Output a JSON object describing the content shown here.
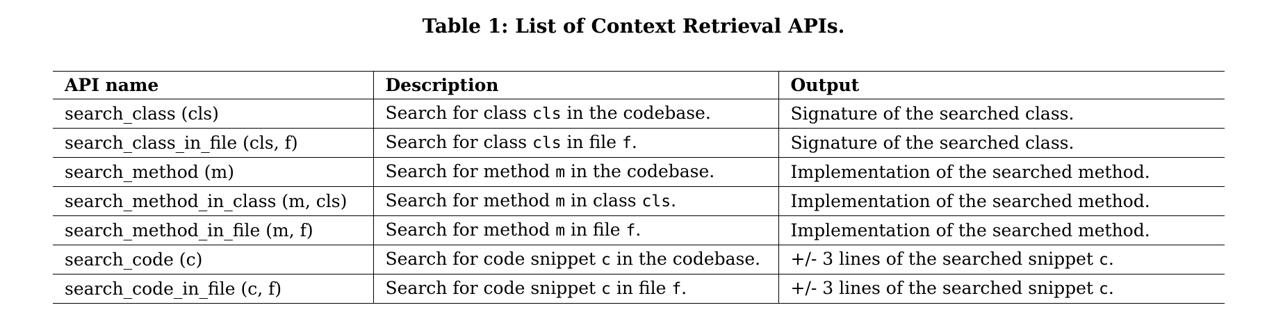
{
  "caption": "Table 1: List of Context Retrieval APIs.",
  "table": {
    "headers": [
      "API name",
      "Description",
      "Output"
    ],
    "rows": [
      {
        "api": "search_class (cls)",
        "description": [
          {
            "text": "Search for class ",
            "code": false
          },
          {
            "text": "cls",
            "code": true
          },
          {
            "text": " in the codebase.",
            "code": false
          }
        ],
        "output": [
          {
            "text": "Signature of the searched class.",
            "code": false
          }
        ]
      },
      {
        "api": "search_class_in_file (cls, f)",
        "description": [
          {
            "text": "Search for class ",
            "code": false
          },
          {
            "text": "cls",
            "code": true
          },
          {
            "text": " in file ",
            "code": false
          },
          {
            "text": "f",
            "code": true
          },
          {
            "text": ".",
            "code": false
          }
        ],
        "output": [
          {
            "text": "Signature of the searched class.",
            "code": false
          }
        ]
      },
      {
        "api": "search_method (m)",
        "description": [
          {
            "text": "Search for method ",
            "code": false
          },
          {
            "text": "m",
            "code": true
          },
          {
            "text": " in the codebase.",
            "code": false
          }
        ],
        "output": [
          {
            "text": "Implementation of the searched method.",
            "code": false
          }
        ]
      },
      {
        "api": "search_method_in_class (m, cls)",
        "description": [
          {
            "text": "Search for method ",
            "code": false
          },
          {
            "text": "m",
            "code": true
          },
          {
            "text": " in class ",
            "code": false
          },
          {
            "text": "cls",
            "code": true
          },
          {
            "text": ".",
            "code": false
          }
        ],
        "output": [
          {
            "text": "Implementation of the searched method.",
            "code": false
          }
        ]
      },
      {
        "api": "search_method_in_file (m, f)",
        "description": [
          {
            "text": "Search for method ",
            "code": false
          },
          {
            "text": "m",
            "code": true
          },
          {
            "text": " in file ",
            "code": false
          },
          {
            "text": "f",
            "code": true
          },
          {
            "text": ".",
            "code": false
          }
        ],
        "output": [
          {
            "text": "Implementation of the searched method.",
            "code": false
          }
        ]
      },
      {
        "api": "search_code (c)",
        "description": [
          {
            "text": "Search for code snippet ",
            "code": false
          },
          {
            "text": "c",
            "code": true
          },
          {
            "text": " in the codebase.",
            "code": false
          }
        ],
        "output": [
          {
            "text": "+/- 3 lines of the searched snippet ",
            "code": false
          },
          {
            "text": "c",
            "code": true
          },
          {
            "text": ".",
            "code": false
          }
        ]
      },
      {
        "api": "search_code_in_file (c, f)",
        "description": [
          {
            "text": "Search for code snippet ",
            "code": false
          },
          {
            "text": "c",
            "code": true
          },
          {
            "text": " in file ",
            "code": false
          },
          {
            "text": "f",
            "code": true
          },
          {
            "text": ".",
            "code": false
          }
        ],
        "output": [
          {
            "text": "+/- 3 lines of the searched snippet ",
            "code": false
          },
          {
            "text": "c",
            "code": true
          },
          {
            "text": ".",
            "code": false
          }
        ]
      }
    ]
  }
}
